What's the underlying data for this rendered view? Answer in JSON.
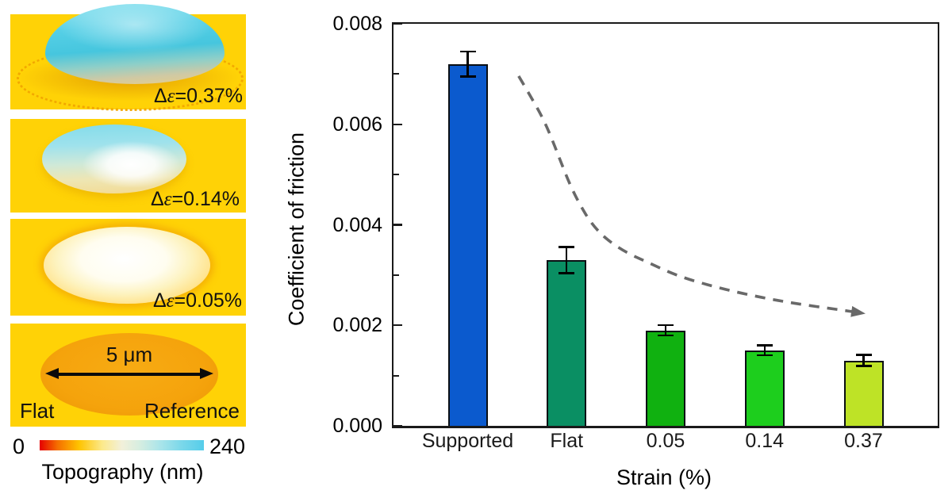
{
  "afm": {
    "panels": [
      {
        "delta": "Δ",
        "epsilon": "ε",
        "value": "=0.37%"
      },
      {
        "delta": "Δ",
        "epsilon": "ε",
        "value": "=0.14%"
      },
      {
        "delta": "Δ",
        "epsilon": "ε",
        "value": "=0.05%"
      }
    ],
    "reference": {
      "scale_label": "5 μm",
      "label_left": "Flat",
      "label_right": "Reference"
    },
    "colorbar": {
      "min": "0",
      "max": "240",
      "title": "Topography (nm)"
    }
  },
  "chart_data": {
    "type": "bar",
    "categories": [
      "Supported",
      "Flat",
      "0.05",
      "0.14",
      "0.37"
    ],
    "values": [
      0.0072,
      0.0033,
      0.0019,
      0.0015,
      0.0013
    ],
    "errors": [
      0.00025,
      0.00026,
      0.0001,
      0.0001,
      0.00011
    ],
    "bar_colors": [
      "#0b5ace",
      "#0a8f63",
      "#10b110",
      "#1dce1d",
      "#bee326"
    ],
    "bar_edge_color": "#0a0f14",
    "title": "",
    "xlabel": "Strain (%)",
    "ylabel": "Coefficient of friction",
    "ylim": [
      0,
      0.008
    ],
    "yticks": [
      0,
      0.002,
      0.004,
      0.006,
      0.008
    ],
    "ytick_labels": [
      "0.000",
      "0.002",
      "0.004",
      "0.006",
      "0.008"
    ],
    "yticks_minor": [
      0.001,
      0.003,
      0.005,
      0.007
    ],
    "grid": false,
    "annotation": {
      "type": "dashed-arrow",
      "color": "#696969",
      "points": [
        [
          0.23,
          0.00696
        ],
        [
          0.254,
          0.00652
        ],
        [
          0.277,
          0.00607
        ],
        [
          0.294,
          0.00563
        ],
        [
          0.309,
          0.00521
        ],
        [
          0.325,
          0.00478
        ],
        [
          0.343,
          0.00439
        ],
        [
          0.364,
          0.00402
        ],
        [
          0.391,
          0.00371
        ],
        [
          0.429,
          0.00344
        ],
        [
          0.464,
          0.00327
        ],
        [
          0.522,
          0.00298
        ],
        [
          0.595,
          0.00275
        ],
        [
          0.668,
          0.00257
        ],
        [
          0.74,
          0.00243
        ],
        [
          0.813,
          0.00232
        ],
        [
          0.863,
          0.00224
        ]
      ]
    }
  }
}
